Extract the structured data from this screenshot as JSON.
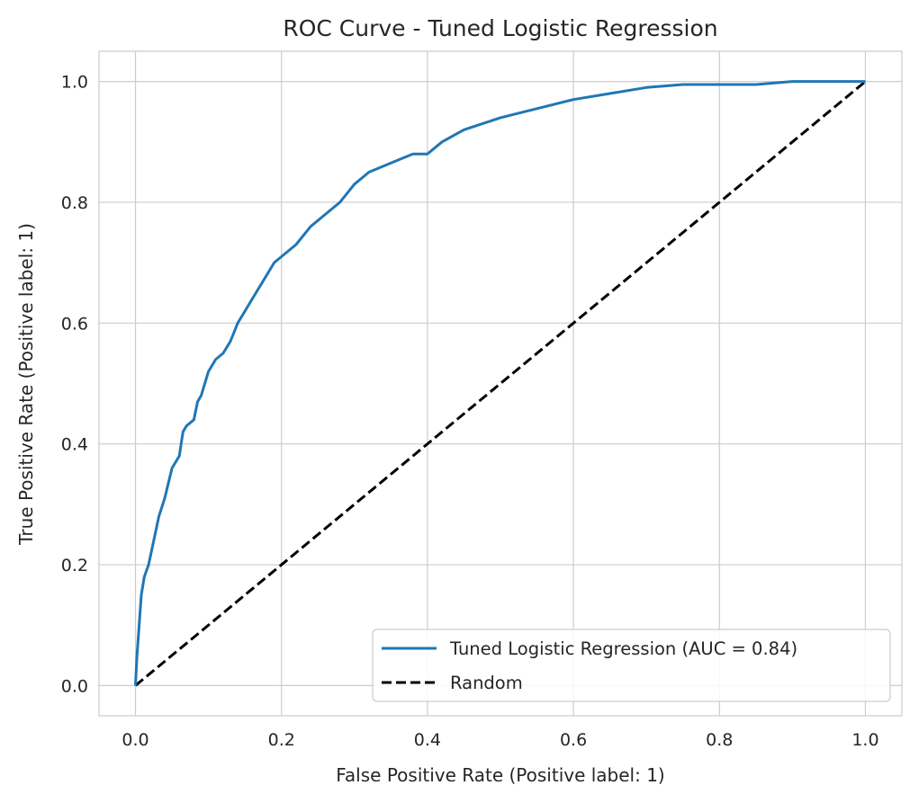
{
  "chart_data": {
    "type": "line",
    "title": "ROC Curve - Tuned Logistic Regression",
    "xlabel": "False Positive Rate (Positive label: 1)",
    "ylabel": "True Positive Rate (Positive label: 1)",
    "xlim": [
      -0.05,
      1.05
    ],
    "ylim": [
      -0.05,
      1.05
    ],
    "xticks": [
      "0.0",
      "0.2",
      "0.4",
      "0.6",
      "0.8",
      "1.0"
    ],
    "yticks": [
      "0.0",
      "0.2",
      "0.4",
      "0.6",
      "0.8",
      "1.0"
    ],
    "grid": true,
    "legend_position": "lower-right",
    "series": [
      {
        "name": "Tuned Logistic Regression (AUC = 0.84)",
        "color": "#1f77b4",
        "style": "solid",
        "x": [
          0,
          0.002,
          0.005,
          0.008,
          0.012,
          0.018,
          0.025,
          0.032,
          0.04,
          0.05,
          0.06,
          0.065,
          0.07,
          0.08,
          0.085,
          0.09,
          0.1,
          0.11,
          0.12,
          0.13,
          0.14,
          0.15,
          0.16,
          0.17,
          0.18,
          0.19,
          0.2,
          0.22,
          0.24,
          0.26,
          0.28,
          0.3,
          0.32,
          0.34,
          0.36,
          0.38,
          0.4,
          0.42,
          0.45,
          0.5,
          0.55,
          0.6,
          0.65,
          0.7,
          0.75,
          0.8,
          0.85,
          0.9,
          1.0
        ],
        "y": [
          0,
          0.05,
          0.1,
          0.15,
          0.18,
          0.2,
          0.24,
          0.28,
          0.31,
          0.36,
          0.38,
          0.42,
          0.43,
          0.44,
          0.47,
          0.48,
          0.52,
          0.54,
          0.55,
          0.57,
          0.6,
          0.62,
          0.64,
          0.66,
          0.68,
          0.7,
          0.71,
          0.73,
          0.76,
          0.78,
          0.8,
          0.83,
          0.85,
          0.86,
          0.87,
          0.88,
          0.88,
          0.9,
          0.92,
          0.94,
          0.955,
          0.97,
          0.98,
          0.99,
          0.995,
          0.995,
          0.995,
          1.0,
          1.0
        ]
      },
      {
        "name": "Random",
        "color": "#000000",
        "style": "dashed",
        "x": [
          0,
          1
        ],
        "y": [
          0,
          1
        ]
      }
    ]
  }
}
